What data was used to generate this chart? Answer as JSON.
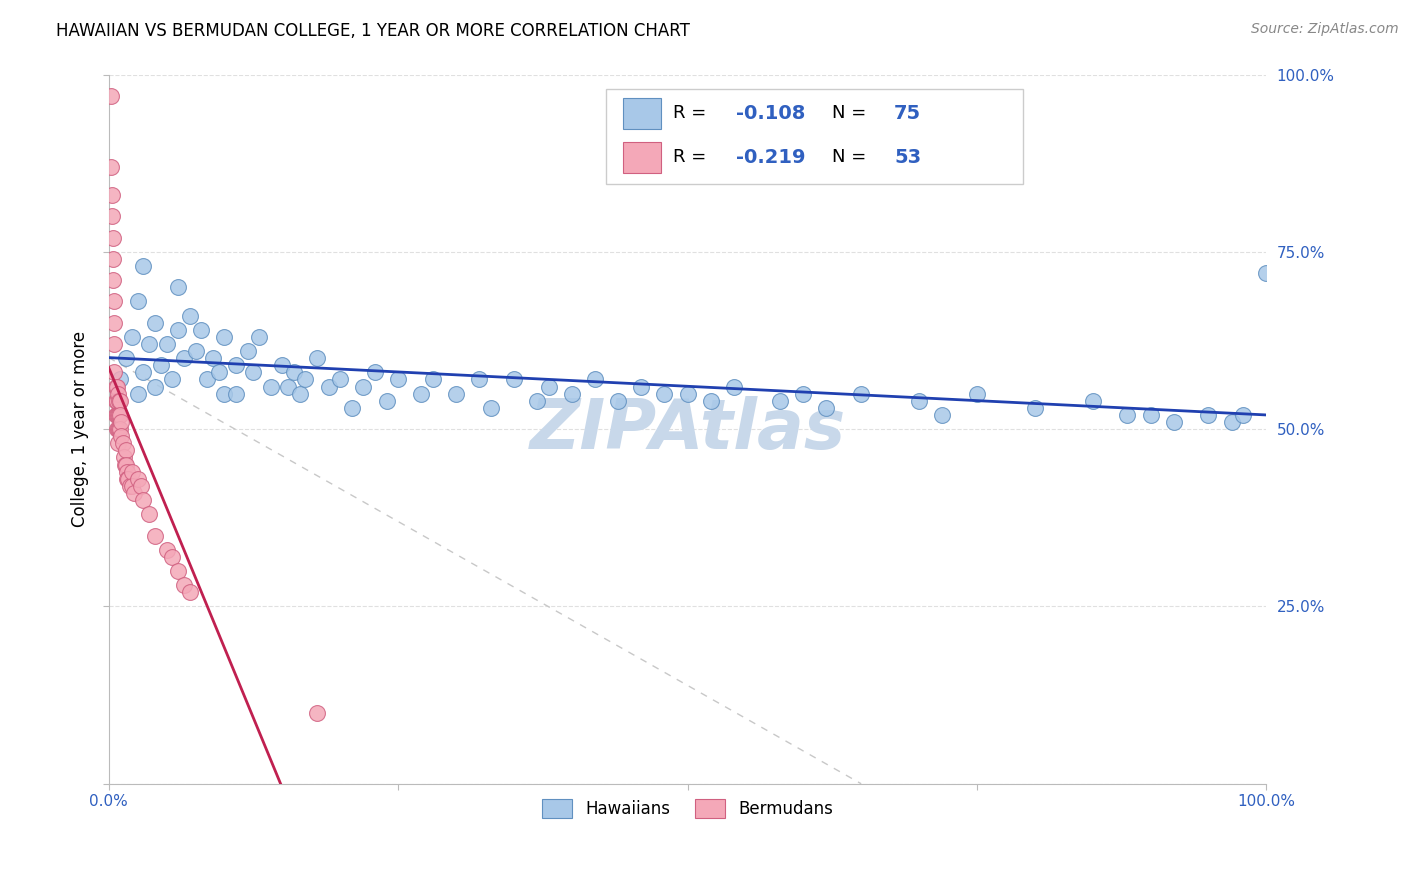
{
  "title": "HAWAIIAN VS BERMUDAN COLLEGE, 1 YEAR OR MORE CORRELATION CHART",
  "source": "Source: ZipAtlas.com",
  "ylabel": "College, 1 year or more",
  "xlabel": "",
  "watermark": "ZIPAtlas",
  "xlim": [
    0.0,
    1.0
  ],
  "ylim": [
    0.0,
    1.0
  ],
  "legend_hawaiians_R": -0.108,
  "legend_hawaiians_N": 75,
  "legend_bermudans_R": -0.219,
  "legend_bermudans_N": 53,
  "hawaiians_label": "Hawaiians",
  "bermudans_label": "Bermudans",
  "hawaiians_x": [
    0.01,
    0.015,
    0.02,
    0.025,
    0.025,
    0.03,
    0.03,
    0.035,
    0.04,
    0.04,
    0.045,
    0.05,
    0.055,
    0.06,
    0.06,
    0.065,
    0.07,
    0.075,
    0.08,
    0.085,
    0.09,
    0.095,
    0.1,
    0.1,
    0.11,
    0.11,
    0.12,
    0.125,
    0.13,
    0.14,
    0.15,
    0.155,
    0.16,
    0.165,
    0.17,
    0.18,
    0.19,
    0.2,
    0.21,
    0.22,
    0.23,
    0.24,
    0.25,
    0.27,
    0.28,
    0.3,
    0.32,
    0.33,
    0.35,
    0.37,
    0.38,
    0.4,
    0.42,
    0.44,
    0.46,
    0.48,
    0.5,
    0.52,
    0.54,
    0.58,
    0.6,
    0.62,
    0.65,
    0.7,
    0.72,
    0.75,
    0.8,
    0.85,
    0.88,
    0.9,
    0.92,
    0.95,
    0.97,
    0.98,
    1.0
  ],
  "hawaiians_y": [
    0.57,
    0.6,
    0.63,
    0.55,
    0.68,
    0.58,
    0.73,
    0.62,
    0.56,
    0.65,
    0.59,
    0.62,
    0.57,
    0.7,
    0.64,
    0.6,
    0.66,
    0.61,
    0.64,
    0.57,
    0.6,
    0.58,
    0.55,
    0.63,
    0.59,
    0.55,
    0.61,
    0.58,
    0.63,
    0.56,
    0.59,
    0.56,
    0.58,
    0.55,
    0.57,
    0.6,
    0.56,
    0.57,
    0.53,
    0.56,
    0.58,
    0.54,
    0.57,
    0.55,
    0.57,
    0.55,
    0.57,
    0.53,
    0.57,
    0.54,
    0.56,
    0.55,
    0.57,
    0.54,
    0.56,
    0.55,
    0.55,
    0.54,
    0.56,
    0.54,
    0.55,
    0.53,
    0.55,
    0.54,
    0.52,
    0.55,
    0.53,
    0.54,
    0.52,
    0.52,
    0.51,
    0.52,
    0.51,
    0.52,
    0.72
  ],
  "bermudans_x": [
    0.002,
    0.002,
    0.003,
    0.003,
    0.004,
    0.004,
    0.004,
    0.005,
    0.005,
    0.005,
    0.005,
    0.006,
    0.006,
    0.006,
    0.007,
    0.007,
    0.007,
    0.007,
    0.008,
    0.008,
    0.008,
    0.008,
    0.009,
    0.009,
    0.009,
    0.01,
    0.01,
    0.01,
    0.011,
    0.011,
    0.012,
    0.013,
    0.014,
    0.015,
    0.015,
    0.016,
    0.016,
    0.017,
    0.018,
    0.02,
    0.02,
    0.022,
    0.025,
    0.028,
    0.03,
    0.035,
    0.04,
    0.05,
    0.055,
    0.06,
    0.065,
    0.07,
    0.18
  ],
  "bermudans_y": [
    0.97,
    0.87,
    0.83,
    0.8,
    0.77,
    0.74,
    0.71,
    0.68,
    0.65,
    0.62,
    0.58,
    0.56,
    0.54,
    0.52,
    0.56,
    0.54,
    0.52,
    0.5,
    0.55,
    0.52,
    0.5,
    0.48,
    0.54,
    0.52,
    0.5,
    0.54,
    0.52,
    0.5,
    0.51,
    0.49,
    0.48,
    0.46,
    0.45,
    0.47,
    0.45,
    0.44,
    0.43,
    0.43,
    0.42,
    0.44,
    0.42,
    0.41,
    0.43,
    0.42,
    0.4,
    0.38,
    0.35,
    0.33,
    0.32,
    0.3,
    0.28,
    0.27,
    0.1
  ],
  "blue_scatter_color": "#a8c8e8",
  "blue_edge_color": "#6090c0",
  "pink_scatter_color": "#f4a8b8",
  "pink_edge_color": "#d06080",
  "blue_line_color": "#2040b0",
  "pink_line_color": "#c02050",
  "dashed_line_color": "#c8c8c8",
  "grid_color": "#e0e0e0",
  "background_color": "#ffffff",
  "title_fontsize": 12,
  "source_fontsize": 10,
  "watermark_color": "#c8d8ea",
  "watermark_fontsize": 50,
  "tick_color": "#3060c0",
  "tick_fontsize": 11
}
